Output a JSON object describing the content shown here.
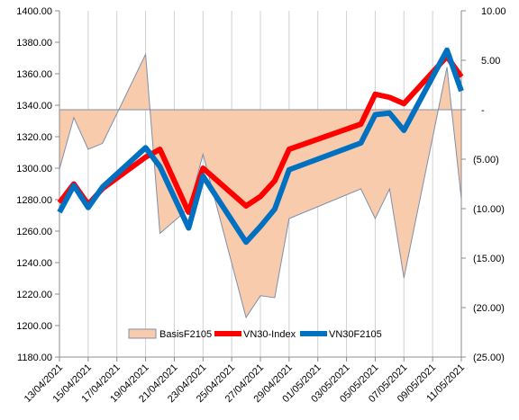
{
  "chart_data": {
    "type": "line",
    "left_axis": {
      "range": [
        1180,
        1400
      ],
      "ticks": [
        "1400.00",
        "1380.00",
        "1360.00",
        "1340.00",
        "1320.00",
        "1300.00",
        "1280.00",
        "1260.00",
        "1240.00",
        "1220.00",
        "1200.00",
        "1180.00"
      ]
    },
    "right_axis": {
      "range": [
        -25,
        10
      ],
      "ticks": [
        "10.00",
        "5.00",
        "-",
        "(5.00)",
        "(10.00)",
        "(15.00)",
        "(20.00)",
        "(25.00)"
      ]
    },
    "x_axis": {
      "range": [
        "2021-04-13",
        "2021-05-11"
      ],
      "tick_labels": [
        "13/04/2021",
        "15/04/2021",
        "17/04/2021",
        "19/04/2021",
        "21/04/2021",
        "23/04/2021",
        "25/04/2021",
        "27/04/2021",
        "29/04/2021",
        "01/05/2021",
        "03/05/2021",
        "05/05/2021",
        "07/05/2021",
        "09/05/2021",
        "11/05/2021"
      ]
    },
    "grid": "vertical",
    "legend_position": "bottom-center",
    "series": [
      {
        "name": "BasisF2105",
        "kind": "area",
        "axis": "right",
        "color": "#f8cbad",
        "edge_color": "#7f8fa9",
        "points": [
          [
            "2021-04-13",
            -6.0
          ],
          [
            "2021-04-14",
            -0.8
          ],
          [
            "2021-04-15",
            -4.0
          ],
          [
            "2021-04-16",
            -3.4
          ],
          [
            "2021-04-19",
            5.6
          ],
          [
            "2021-04-20",
            -12.5
          ],
          [
            "2021-04-22",
            -10.0
          ],
          [
            "2021-04-23",
            -4.5
          ],
          [
            "2021-04-26",
            -21.0
          ],
          [
            "2021-04-27",
            -18.8
          ],
          [
            "2021-04-28",
            -19.0
          ],
          [
            "2021-04-29",
            -11.0
          ],
          [
            "2021-05-04",
            -8.0
          ],
          [
            "2021-05-05",
            -11.0
          ],
          [
            "2021-05-06",
            -8.0
          ],
          [
            "2021-05-07",
            -17.0
          ],
          [
            "2021-05-10",
            4.3
          ],
          [
            "2021-05-11",
            -9.0
          ]
        ]
      },
      {
        "name": "VN30-Index",
        "kind": "line",
        "axis": "left",
        "color": "#ff0000",
        "points": [
          [
            "2021-04-13",
            1278
          ],
          [
            "2021-04-14",
            1290
          ],
          [
            "2021-04-15",
            1277
          ],
          [
            "2021-04-16",
            1287
          ],
          [
            "2021-04-19",
            1307
          ],
          [
            "2021-04-20",
            1312
          ],
          [
            "2021-04-22",
            1272
          ],
          [
            "2021-04-23",
            1300
          ],
          [
            "2021-04-26",
            1276
          ],
          [
            "2021-04-27",
            1282
          ],
          [
            "2021-04-28",
            1292
          ],
          [
            "2021-04-29",
            1312
          ],
          [
            "2021-05-04",
            1328
          ],
          [
            "2021-05-05",
            1347
          ],
          [
            "2021-05-06",
            1345
          ],
          [
            "2021-05-07",
            1341
          ],
          [
            "2021-05-10",
            1371
          ],
          [
            "2021-05-11",
            1358
          ]
        ]
      },
      {
        "name": "VN30F2105",
        "kind": "line",
        "axis": "left",
        "color": "#0070c0",
        "points": [
          [
            "2021-04-13",
            1272
          ],
          [
            "2021-04-14",
            1289
          ],
          [
            "2021-04-15",
            1275
          ],
          [
            "2021-04-16",
            1288
          ],
          [
            "2021-04-19",
            1313
          ],
          [
            "2021-04-20",
            1301
          ],
          [
            "2021-04-22",
            1262
          ],
          [
            "2021-04-23",
            1295
          ],
          [
            "2021-04-26",
            1253
          ],
          [
            "2021-04-27",
            1263
          ],
          [
            "2021-04-28",
            1274
          ],
          [
            "2021-04-29",
            1299
          ],
          [
            "2021-05-04",
            1316
          ],
          [
            "2021-05-05",
            1334
          ],
          [
            "2021-05-06",
            1335
          ],
          [
            "2021-05-07",
            1324
          ],
          [
            "2021-05-10",
            1375
          ],
          [
            "2021-05-11",
            1349
          ]
        ]
      }
    ]
  }
}
